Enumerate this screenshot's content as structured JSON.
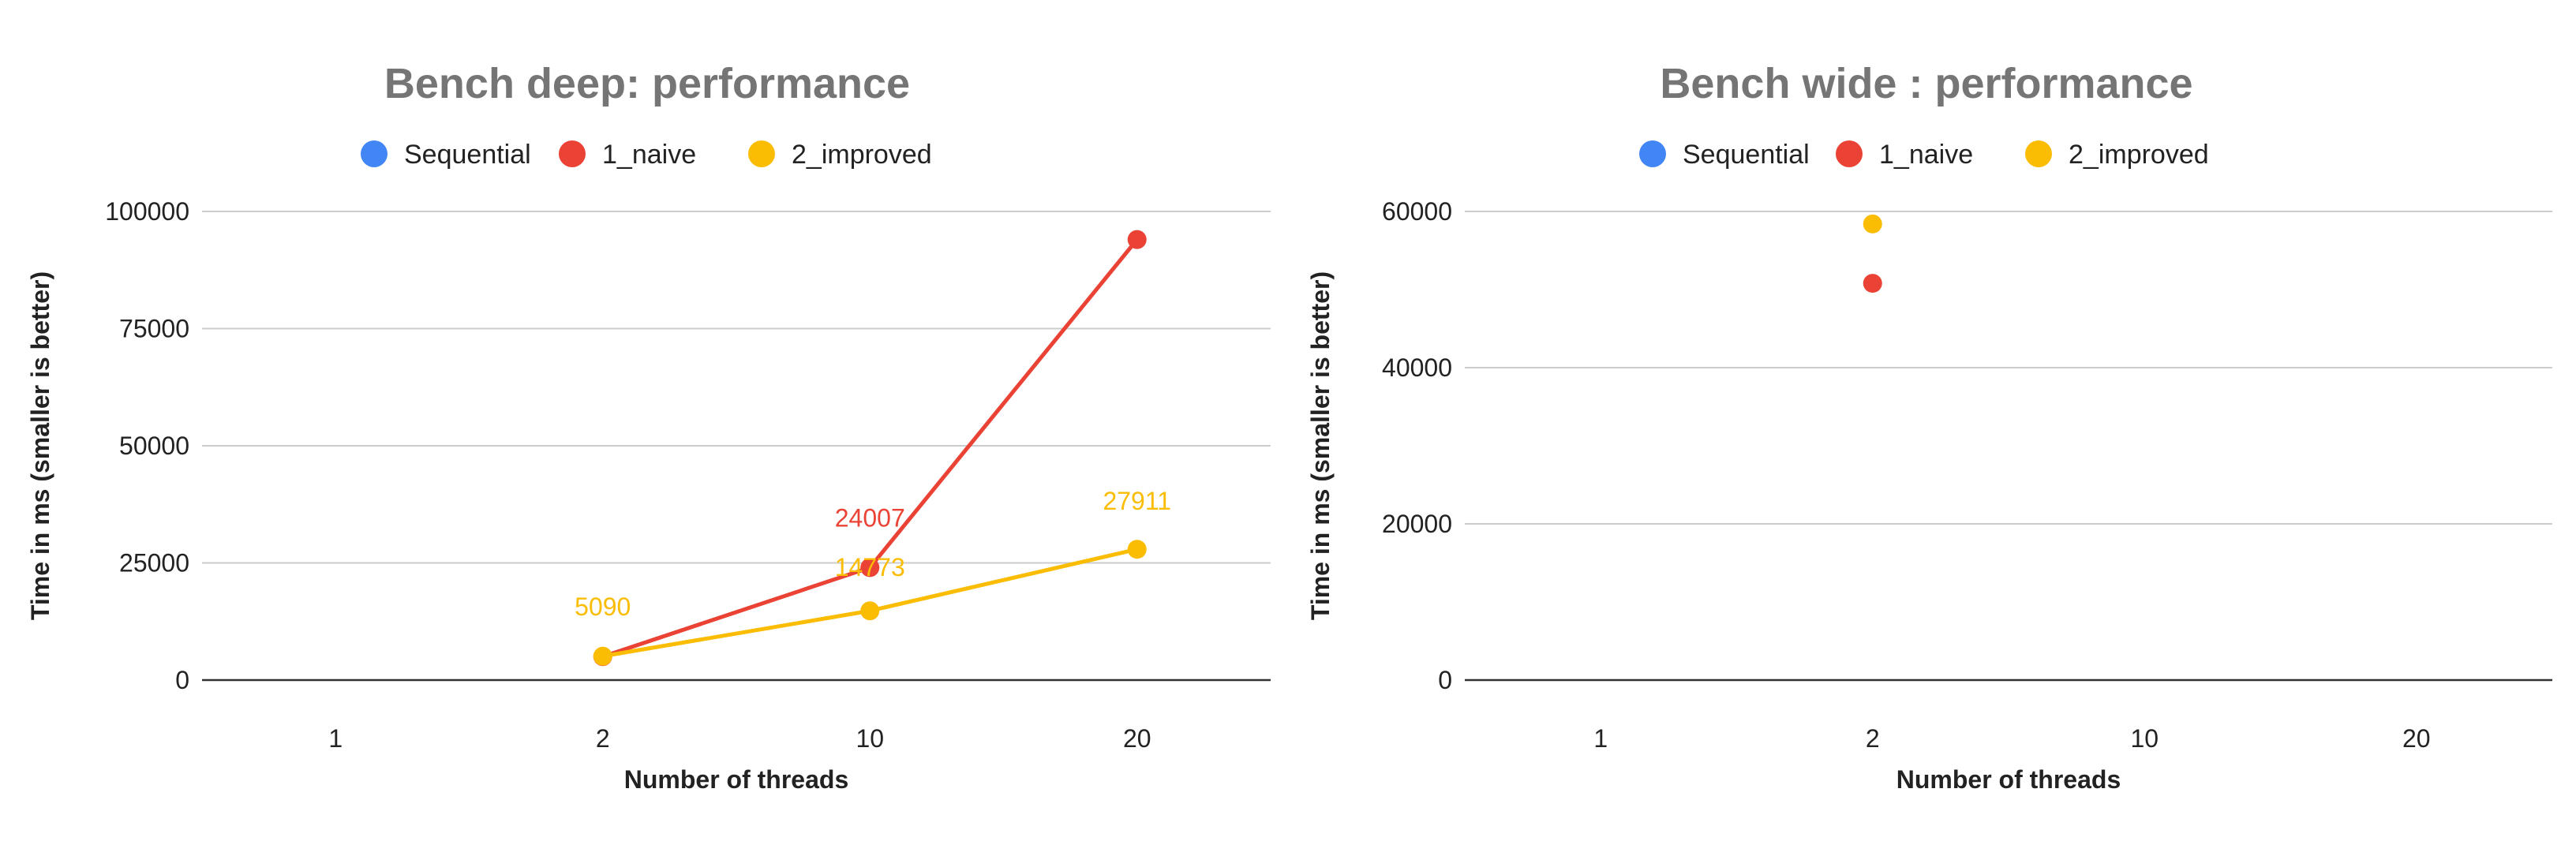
{
  "chart_data": [
    {
      "type": "line",
      "title": "Bench deep: performance",
      "xlabel": "Number of threads",
      "ylabel": "Time in ms (smaller is better)",
      "categories": [
        "1",
        "2",
        "10",
        "20"
      ],
      "ylim": [
        0,
        100000
      ],
      "yticks": [
        "0",
        "25000",
        "50000",
        "75000",
        "100000"
      ],
      "grid": true,
      "legend_position": "top",
      "series": [
        {
          "name": "Sequential",
          "color": "#4285f4",
          "values": [
            null,
            null,
            null,
            null
          ],
          "labels": [
            null,
            null,
            null,
            null
          ]
        },
        {
          "name": "1_naive",
          "color": "#ea4335",
          "values": [
            null,
            5000,
            24007,
            94000
          ],
          "labels": [
            null,
            null,
            "24007",
            null
          ]
        },
        {
          "name": "2_improved",
          "color": "#fbbc04",
          "values": [
            null,
            5090,
            14773,
            27911
          ],
          "labels": [
            null,
            "5090",
            "14773",
            "27911"
          ]
        }
      ]
    },
    {
      "type": "line",
      "title": "Bench wide : performance",
      "xlabel": "Number of threads",
      "ylabel": "Time in ms (smaller is better)",
      "categories": [
        "1",
        "2",
        "10",
        "20"
      ],
      "ylim": [
        0,
        60000
      ],
      "yticks": [
        "0",
        "20000",
        "40000",
        "60000"
      ],
      "grid": true,
      "legend_position": "top",
      "series": [
        {
          "name": "Sequential",
          "color": "#4285f4",
          "values": [
            null,
            null,
            null,
            null
          ],
          "labels": [
            null,
            null,
            null,
            null
          ]
        },
        {
          "name": "1_naive",
          "color": "#ea4335",
          "values": [
            null,
            50800,
            null,
            null
          ],
          "labels": [
            null,
            null,
            null,
            null
          ]
        },
        {
          "name": "2_improved",
          "color": "#fbbc04",
          "values": [
            null,
            58400,
            null,
            null
          ],
          "labels": [
            null,
            null,
            null,
            null
          ]
        }
      ]
    }
  ]
}
